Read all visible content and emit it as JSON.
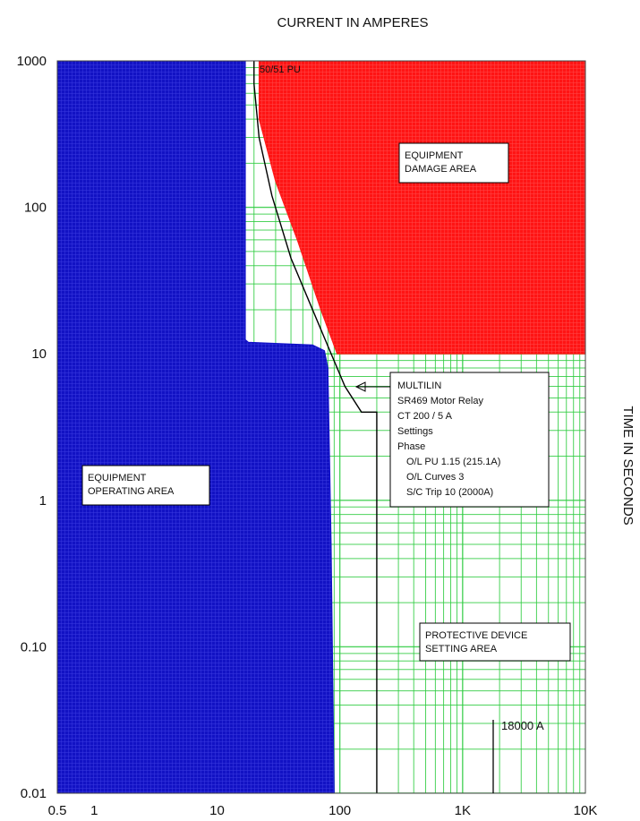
{
  "chart_data": {
    "type": "line",
    "title": "CURRENT IN AMPERES",
    "xlabel": "CURRENT IN AMPERES",
    "ylabel": "TIME IN SECONDS",
    "xscale": "log",
    "yscale": "log",
    "xlim": [
      0.5,
      10000
    ],
    "ylim": [
      0.01,
      1000
    ],
    "x_ticks": [
      {
        "value": 0.5,
        "label": "0.5"
      },
      {
        "value": 1,
        "label": "1"
      },
      {
        "value": 10,
        "label": "10"
      },
      {
        "value": 100,
        "label": "100"
      },
      {
        "value": 1000,
        "label": "1K"
      },
      {
        "value": 10000,
        "label": "10K"
      }
    ],
    "y_ticks": [
      {
        "value": 1000,
        "label": "1000"
      },
      {
        "value": 100,
        "label": "100"
      },
      {
        "value": 10,
        "label": "10"
      },
      {
        "value": 1,
        "label": "1"
      },
      {
        "value": 0.1,
        "label": "0.10"
      },
      {
        "value": 0.01,
        "label": "0.01"
      }
    ],
    "grid": true,
    "regions": [
      {
        "label": "EQUIPMENT OPERATING AREA",
        "color": "#1010c8"
      },
      {
        "label": "EQUIPMENT DAMAGE AREA",
        "color": "#ff1a1a"
      },
      {
        "label": "PROTECTIVE DEVICE SETTING AREA",
        "color": "#2ecc40"
      }
    ],
    "operating_boundary": [
      [
        17,
        1000
      ],
      [
        17,
        12.5
      ],
      [
        18,
        12
      ],
      [
        60,
        11.5
      ],
      [
        75,
        10.5
      ],
      [
        80,
        8
      ],
      [
        85,
        0.5
      ],
      [
        90,
        0.01
      ]
    ],
    "damage_boundary": [
      [
        22,
        1000
      ],
      [
        22,
        400
      ],
      [
        30,
        150
      ],
      [
        45,
        60
      ],
      [
        70,
        20
      ],
      [
        95,
        10
      ],
      [
        10000,
        10
      ]
    ],
    "series": [
      {
        "name": "50/51 PU",
        "x": [
          20,
          20,
          22,
          28,
          40,
          60,
          85,
          110,
          150,
          200,
          200
        ],
        "y": [
          1000,
          700,
          300,
          120,
          45,
          20,
          10,
          6,
          4,
          4,
          0.01
        ]
      }
    ],
    "annotations": [
      {
        "text": "50/51 PU"
      },
      {
        "text": "18000 A"
      }
    ],
    "relay_box": [
      "MULTILIN",
      "SR469 Motor Relay",
      "CT 200 / 5 A",
      "Settings",
      "Phase",
      "  O/L PU 1.15 (215.1A)",
      "  O/L Curves 3",
      "  S/C Trip 10 (2000A)"
    ]
  }
}
